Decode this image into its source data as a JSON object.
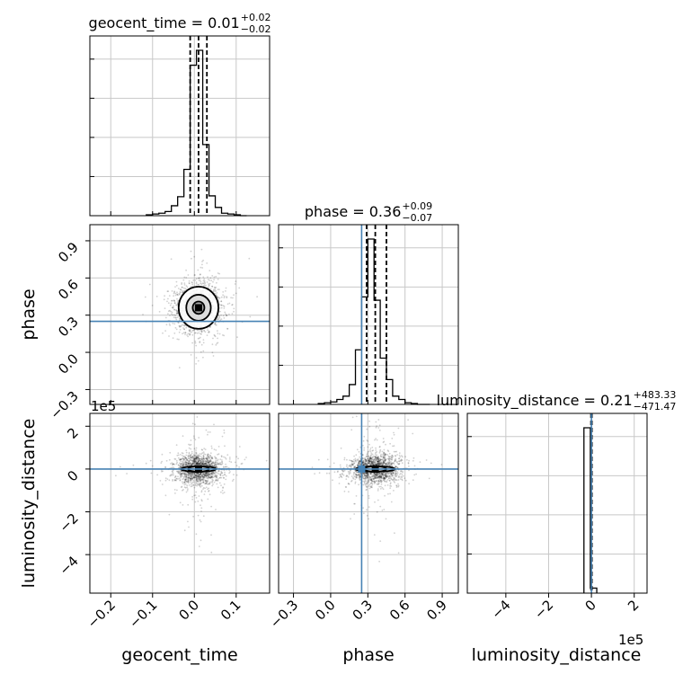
{
  "chart_data": {
    "type": "corner",
    "parameters": [
      "geocent_time",
      "phase",
      "luminosity_distance"
    ],
    "truth_color": "#4682b4",
    "truths": {
      "phase": 0.25,
      "luminosity_distance": 0
    },
    "titles": [
      {
        "param": "geocent_time",
        "prefix": "geocent_time = 0.01",
        "sup": "+0.02",
        "sub": "−0.02"
      },
      {
        "param": "phase",
        "prefix": "phase = 0.36",
        "sup": "+0.09",
        "sub": "−0.07"
      },
      {
        "param": "luminosity_distance",
        "prefix": "luminosity_distance = 0.21",
        "sup": "+483.33",
        "sub": "−471.47"
      }
    ],
    "axes": {
      "geocent_time": {
        "range": [
          -0.25,
          0.18
        ],
        "ticks": [
          -0.2,
          -0.1,
          0.0,
          0.1
        ],
        "tick_labels": [
          "−0.2",
          "−0.1",
          "0.0",
          "0.1"
        ]
      },
      "phase": {
        "range": [
          -0.42,
          1.03
        ],
        "ticks": [
          -0.3,
          0.0,
          0.3,
          0.6,
          0.9
        ],
        "tick_labels": [
          "−0.3",
          "0.0",
          "0.3",
          "0.6",
          "0.9"
        ]
      },
      "luminosity_distance": {
        "range": [
          -5.8,
          2.6
        ],
        "ticks": [
          -4,
          -2,
          0,
          2
        ],
        "tick_labels": [
          "−4",
          "−2",
          "0",
          "2"
        ],
        "offset": "1e5"
      }
    },
    "hist_geocent_time": {
      "bin_edges": [
        -0.115,
        -0.1,
        -0.085,
        -0.07,
        -0.055,
        -0.04,
        -0.025,
        -0.01,
        0.005,
        0.02,
        0.035,
        0.05,
        0.065,
        0.08,
        0.095,
        0.11,
        0.125
      ],
      "counts": [
        0.005,
        0.01,
        0.015,
        0.025,
        0.06,
        0.115,
        0.28,
        0.91,
        1.0,
        0.43,
        0.12,
        0.05,
        0.015,
        0.01,
        0.005,
        0.0
      ],
      "quantile_lines": [
        -0.01,
        0.01,
        0.03
      ]
    },
    "hist_phase": {
      "bin_edges": [
        -0.1,
        -0.05,
        0.0,
        0.05,
        0.1,
        0.15,
        0.2,
        0.25,
        0.3,
        0.35,
        0.4,
        0.45,
        0.5,
        0.55,
        0.6,
        0.65,
        0.7,
        0.75,
        0.8
      ],
      "counts": [
        0.005,
        0.01,
        0.015,
        0.03,
        0.05,
        0.12,
        0.33,
        0.65,
        1.0,
        0.63,
        0.28,
        0.15,
        0.05,
        0.03,
        0.01,
        0.005,
        0.0,
        0.0
      ],
      "quantile_lines": [
        0.29,
        0.36,
        0.45
      ]
    },
    "hist_luminosity_distance": {
      "bin_edges": [
        -0.35,
        -0.05,
        0.25
      ],
      "counts": [
        0.98,
        0.03
      ],
      "quantile_lines": [
        -0.02,
        0.0,
        0.02
      ]
    },
    "samples_2d": {
      "geocent_time_center": 0.01,
      "geocent_time_spread": 0.028,
      "phase_center": 0.36,
      "phase_spread": 0.1,
      "luminosity_distance_center": 0.0,
      "luminosity_distance_spread": 0.35
    }
  },
  "labels": {
    "x_geocent_time": "geocent_time",
    "x_phase": "phase",
    "x_luminosity_distance": "luminosity_distance",
    "y_phase": "phase",
    "y_luminosity_distance": "luminosity_distance",
    "offset_x": "1e5",
    "offset_y": "1e5"
  }
}
